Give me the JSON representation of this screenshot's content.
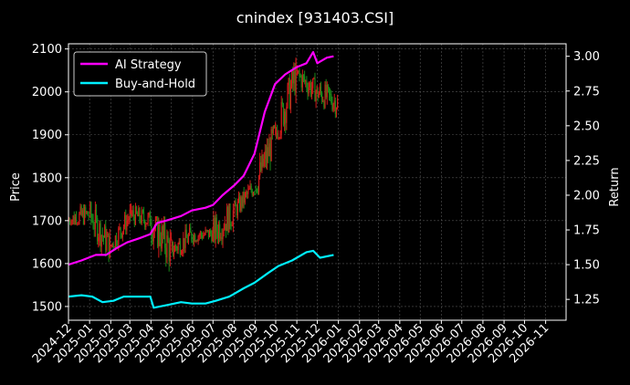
{
  "chart_data": {
    "type": "line",
    "title": "cnindex [931403.CSI]",
    "ylabel_left": "Price",
    "ylabel_right": "Return",
    "x_ticks": [
      "2024-12",
      "2025-01",
      "2025-02",
      "2025-03",
      "2025-04",
      "2025-05",
      "2025-06",
      "2025-07",
      "2025-08",
      "2025-09",
      "2025-10",
      "2025-11",
      "2025-12",
      "2026-01",
      "2026-02",
      "2026-03",
      "2026-04",
      "2026-05",
      "2026-06",
      "2026-07",
      "2026-08",
      "2026-09",
      "2026-10",
      "2026-11"
    ],
    "xlim": [
      "2024-12-01",
      "2026-12-01"
    ],
    "ylim_left": [
      1468,
      2112
    ],
    "ylim_right": [
      1.1,
      3.09
    ],
    "y_ticks_left": [
      1500,
      1600,
      1700,
      1800,
      1900,
      2000,
      2100
    ],
    "y_ticks_right": [
      "1.25",
      "1.50",
      "1.75",
      "2.00",
      "2.25",
      "2.50",
      "2.75",
      "3.00"
    ],
    "grid": true,
    "legend_position": "top-left",
    "colors": {
      "background": "#000000",
      "up": "#d11a1a",
      "down": "#1a8a1a",
      "ai": "#ff00ff",
      "bh": "#00f0ff",
      "grid": "#555555",
      "axis": "#ffffff"
    },
    "price_ohlc_monthly": [
      {
        "month": "2024-12",
        "open": 1700,
        "high": 1800,
        "low": 1690,
        "close": 1715
      },
      {
        "month": "2025-01",
        "open": 1715,
        "high": 1745,
        "low": 1590,
        "close": 1640
      },
      {
        "month": "2025-02",
        "open": 1640,
        "high": 1740,
        "low": 1630,
        "close": 1715
      },
      {
        "month": "2025-03",
        "open": 1715,
        "high": 1750,
        "low": 1650,
        "close": 1700
      },
      {
        "month": "2025-04",
        "open": 1700,
        "high": 1710,
        "low": 1515,
        "close": 1630
      },
      {
        "month": "2025-05",
        "open": 1630,
        "high": 1720,
        "low": 1610,
        "close": 1665
      },
      {
        "month": "2025-06",
        "open": 1665,
        "high": 1700,
        "low": 1620,
        "close": 1670
      },
      {
        "month": "2025-07",
        "open": 1670,
        "high": 1740,
        "low": 1580,
        "close": 1720
      },
      {
        "month": "2025-08",
        "open": 1720,
        "high": 1800,
        "low": 1700,
        "close": 1780
      },
      {
        "month": "2025-09",
        "open": 1780,
        "high": 1930,
        "low": 1760,
        "close": 1900
      },
      {
        "month": "2025-10",
        "open": 1900,
        "high": 2080,
        "low": 1890,
        "close": 2040
      },
      {
        "month": "2025-11",
        "open": 2040,
        "high": 2080,
        "low": 1960,
        "close": 2000
      },
      {
        "month": "2025-12",
        "open": 2000,
        "high": 2060,
        "low": 1930,
        "close": 1975
      }
    ],
    "series": [
      {
        "name": "AI Strategy",
        "color": "#ff00ff",
        "points": [
          [
            "2024-12-01",
            1.5
          ],
          [
            "2024-12-20",
            1.53
          ],
          [
            "2025-01-10",
            1.57
          ],
          [
            "2025-01-25",
            1.57
          ],
          [
            "2025-02-10",
            1.62
          ],
          [
            "2025-02-25",
            1.66
          ],
          [
            "2025-03-15",
            1.69
          ],
          [
            "2025-03-31",
            1.72
          ],
          [
            "2025-04-10",
            1.8
          ],
          [
            "2025-04-25",
            1.82
          ],
          [
            "2025-05-15",
            1.85
          ],
          [
            "2025-05-31",
            1.89
          ],
          [
            "2025-06-20",
            1.91
          ],
          [
            "2025-07-01",
            1.93
          ],
          [
            "2025-07-15",
            2.0
          ],
          [
            "2025-08-01",
            2.07
          ],
          [
            "2025-08-15",
            2.14
          ],
          [
            "2025-08-31",
            2.3
          ],
          [
            "2025-09-15",
            2.6
          ],
          [
            "2025-09-30",
            2.8
          ],
          [
            "2025-10-15",
            2.87
          ],
          [
            "2025-10-31",
            2.92
          ],
          [
            "2025-11-15",
            2.95
          ],
          [
            "2025-11-25",
            3.03
          ],
          [
            "2025-12-01",
            2.95
          ],
          [
            "2025-12-15",
            2.99
          ],
          [
            "2025-12-25",
            3.0
          ]
        ]
      },
      {
        "name": "Buy-and-Hold",
        "color": "#00f0ff",
        "points": [
          [
            "2024-12-01",
            1.27
          ],
          [
            "2024-12-20",
            1.28
          ],
          [
            "2025-01-05",
            1.27
          ],
          [
            "2025-01-20",
            1.23
          ],
          [
            "2025-02-05",
            1.24
          ],
          [
            "2025-02-20",
            1.27
          ],
          [
            "2025-03-10",
            1.27
          ],
          [
            "2025-03-31",
            1.27
          ],
          [
            "2025-04-05",
            1.19
          ],
          [
            "2025-04-25",
            1.21
          ],
          [
            "2025-05-15",
            1.23
          ],
          [
            "2025-05-31",
            1.22
          ],
          [
            "2025-06-20",
            1.22
          ],
          [
            "2025-07-05",
            1.24
          ],
          [
            "2025-07-25",
            1.27
          ],
          [
            "2025-08-15",
            1.33
          ],
          [
            "2025-08-31",
            1.37
          ],
          [
            "2025-09-20",
            1.44
          ],
          [
            "2025-10-05",
            1.49
          ],
          [
            "2025-10-25",
            1.53
          ],
          [
            "2025-11-15",
            1.59
          ],
          [
            "2025-11-25",
            1.6
          ],
          [
            "2025-12-05",
            1.55
          ],
          [
            "2025-12-25",
            1.57
          ]
        ]
      }
    ]
  }
}
